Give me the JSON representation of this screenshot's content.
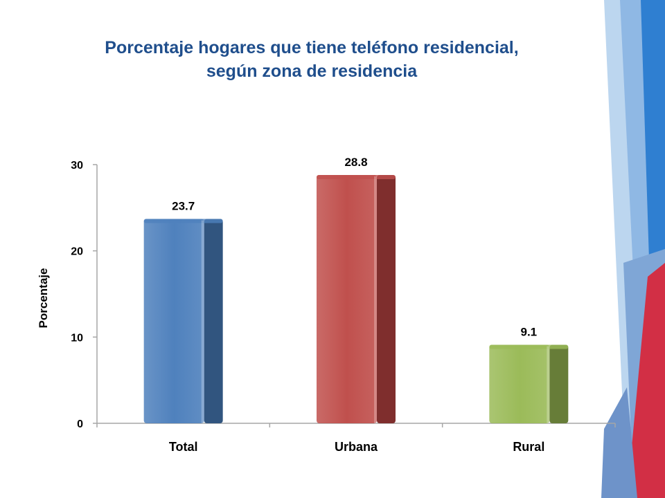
{
  "slide": {
    "title_line1": "Porcentaje hogares que tiene teléfono residencial,",
    "title_line2": "según zona de residencia"
  },
  "chart_data": {
    "type": "bar",
    "title": "Porcentaje hogares que tiene teléfono residencial, según zona de residencia",
    "xlabel": "",
    "ylabel": "Porcentaje",
    "categories": [
      "Total",
      "Urbana",
      "Rural"
    ],
    "values": [
      23.7,
      28.8,
      9.1
    ],
    "data_labels": [
      "23.7",
      "28.8",
      "9.1"
    ],
    "ylim": [
      0,
      30
    ],
    "yticks": [
      0,
      10,
      20,
      30
    ],
    "ytick_labels": [
      "0",
      "10",
      "20",
      "30"
    ],
    "grid": false,
    "legend": "none",
    "colors": [
      "#4f81bd",
      "#c0504d",
      "#9bbb59"
    ],
    "shade_colors": [
      "#31557f",
      "#7f2e2d",
      "#677d38"
    ]
  }
}
